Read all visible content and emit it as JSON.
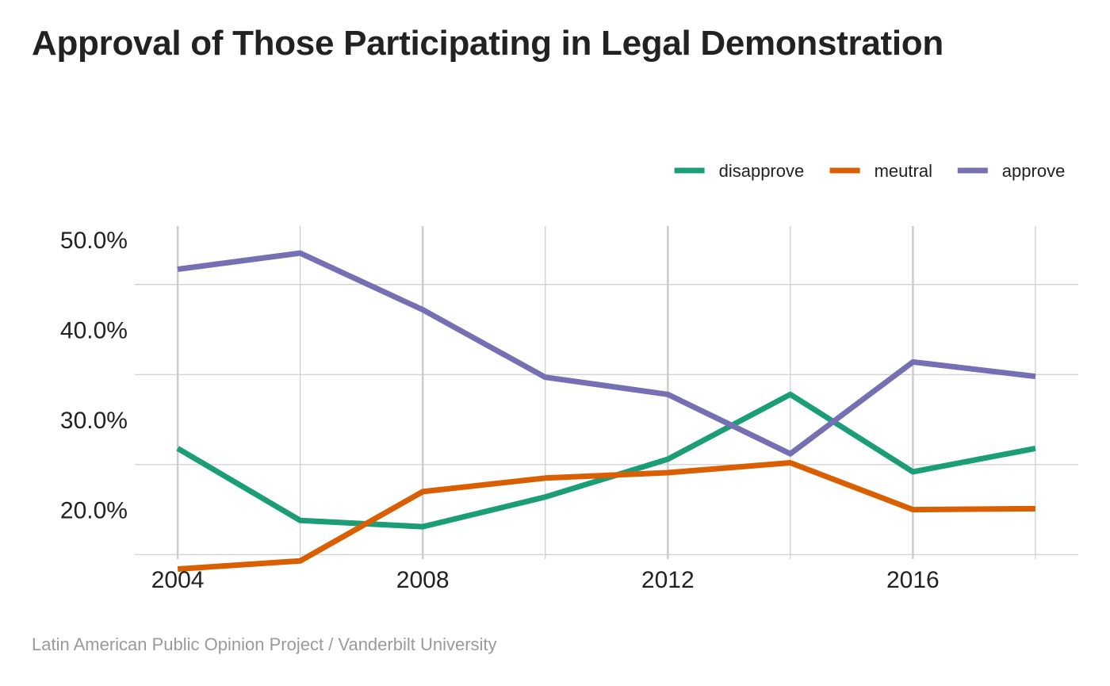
{
  "chart_title": "Approval of Those Participating in Legal Demonstration",
  "caption": "Latin American Public Opinion Project / Vanderbilt University",
  "chart_data": {
    "type": "line",
    "title": "Approval of Those Participating in Legal Demonstration",
    "xlabel": "",
    "ylabel": "",
    "x": [
      2004,
      2006,
      2008,
      2010,
      2012,
      2014,
      2016,
      2018
    ],
    "x_ticks": [
      2004,
      2008,
      2012,
      2016
    ],
    "x_tick_labels": [
      "2004",
      "2008",
      "2012",
      "2016"
    ],
    "y_ticks": [
      50,
      40,
      30,
      20
    ],
    "y_tick_labels": [
      "50.0%",
      "40.0%",
      "30.0%",
      "20.0%"
    ],
    "xlim": [
      2003.3,
      2018.7
    ],
    "ylim": [
      14.5,
      51.5
    ],
    "grid": true,
    "legend_position": "top-right",
    "series": [
      {
        "name": "disapprove",
        "color": "#1b9e77",
        "values": [
          26.8,
          18.8,
          18.1,
          21.4,
          25.6,
          32.8,
          24.2,
          26.8
        ]
      },
      {
        "name": "meutral",
        "color": "#d95f02",
        "values": [
          13.4,
          14.3,
          22.0,
          23.5,
          24.1,
          25.2,
          20.0,
          20.1
        ]
      },
      {
        "name": "approve",
        "color": "#7570b3",
        "values": [
          46.7,
          48.5,
          42.2,
          34.7,
          32.8,
          26.2,
          36.4,
          34.8
        ]
      }
    ]
  }
}
